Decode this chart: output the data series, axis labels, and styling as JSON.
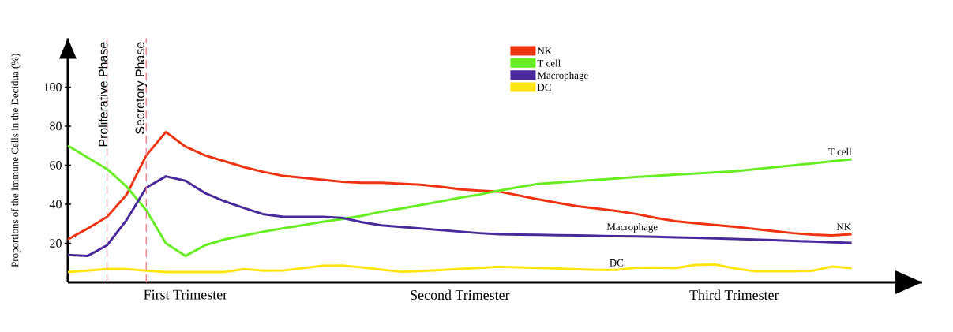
{
  "chart_data": {
    "type": "line",
    "ylabel": "Proportions of the Immune Cells in the Decidua (%)",
    "categories": [
      null,
      null,
      null,
      null,
      null,
      null,
      "First Trimester",
      null,
      null,
      null,
      null,
      null,
      null,
      null,
      null,
      null,
      null,
      null,
      null,
      null,
      "Second Trimester",
      null,
      null,
      null,
      null,
      null,
      null,
      null,
      null,
      null,
      null,
      null,
      null,
      null,
      "Third Trimester",
      null,
      null,
      null,
      null,
      null,
      null
    ],
    "ylim": [
      0,
      125
    ],
    "yticks": [
      20,
      40,
      60,
      80,
      100
    ],
    "series": [
      {
        "name": "NK",
        "color": "#ee3311",
        "values": [
          22,
          27.5,
          33.5,
          45,
          65,
          77,
          69.5,
          65,
          62,
          59,
          56.5,
          54.5,
          53.5,
          52.5,
          51.5,
          51,
          51,
          50.5,
          50,
          49,
          47.7,
          47,
          46.5,
          44.5,
          42.5,
          40.7,
          39,
          37.8,
          36.6,
          35,
          33,
          31.3,
          30.3,
          29.4,
          28.5,
          27.4,
          26.3,
          25.2,
          24.4,
          24,
          24.6
        ]
      },
      {
        "name": "T cell",
        "color": "#66ee22",
        "values": [
          70,
          64,
          58,
          49,
          37,
          20,
          13.5,
          19,
          22,
          24,
          26,
          27.7,
          29.3,
          31,
          32.4,
          34,
          36.2,
          37.8,
          39.6,
          41.4,
          43.3,
          45,
          47,
          48.8,
          50.4,
          51.1,
          51.8,
          52.5,
          53.2,
          53.9,
          54.5,
          55.1,
          55.7,
          56.3,
          56.9,
          57.9,
          58.9,
          59.9,
          60.9,
          62,
          63
        ]
      },
      {
        "name": "Macrophage",
        "color": "#4a2a9a",
        "values": [
          14,
          13.5,
          19,
          32,
          48.5,
          54.3,
          52,
          45.7,
          41.5,
          38,
          34.8,
          33.5,
          33.5,
          33.5,
          33,
          30.8,
          29.2,
          28.4,
          27.6,
          26.8,
          26,
          25.2,
          24.6,
          24.4,
          24.3,
          24.1,
          24,
          23.8,
          23.6,
          23.5,
          23.3,
          23,
          22.8,
          22.5,
          22.2,
          21.9,
          21.6,
          21.2,
          20.9,
          20.5,
          20.2
        ]
      },
      {
        "name": "DC",
        "color": "#ffe411",
        "values": [
          5.3,
          6,
          6.9,
          6.8,
          6,
          5.3,
          5.3,
          5.3,
          5.3,
          6.8,
          6,
          6.1,
          7.3,
          8.5,
          8.6,
          7.7,
          6.5,
          5.4,
          5.8,
          6.3,
          6.9,
          7.4,
          8,
          7.7,
          7.4,
          7.1,
          6.7,
          6.4,
          6.4,
          7.5,
          7.6,
          7.3,
          8.9,
          9.2,
          7.2,
          5.7,
          5.7,
          5.7,
          5.9,
          8.1,
          7.3
        ]
      }
    ],
    "annotations": [
      "Proliferative Phase",
      "Secretory Phase",
      {
        "text": "T cell",
        "y": 63
      },
      {
        "text": "NK",
        "y": 24.6
      },
      {
        "text": "Macrophage",
        "y": 23.4
      },
      {
        "text": "DC",
        "y": 6.1
      }
    ],
    "legend": "top",
    "marker": "none",
    "line_style": "solid"
  }
}
